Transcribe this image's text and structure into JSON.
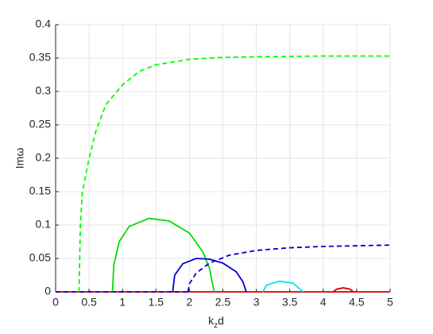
{
  "chart_data": {
    "type": "line",
    "xlabel": [
      "k",
      "z",
      "d"
    ],
    "ylabel": "Imω",
    "xlim": [
      0,
      5
    ],
    "ylim": [
      0,
      0.4
    ],
    "xticks": [
      0,
      0.5,
      1,
      1.5,
      2,
      2.5,
      3,
      3.5,
      4,
      4.5,
      5
    ],
    "yticks": [
      0,
      0.05,
      0.1,
      0.15,
      0.2,
      0.25,
      0.3,
      0.35,
      0.4
    ],
    "grid": true,
    "series": [
      {
        "color": "#d00000",
        "dash": false,
        "x": [
          0,
          5
        ],
        "values": [
          0,
          0
        ]
      },
      {
        "color": "#0000d0",
        "dash": true,
        "x": [
          0,
          1.98
        ],
        "values": [
          0,
          0
        ]
      },
      {
        "color": "#00ff00",
        "dash": true,
        "x": [
          0.35,
          0.37,
          0.4,
          0.5,
          0.6,
          0.75,
          1.0,
          1.25,
          1.5,
          2,
          2.5,
          3,
          4,
          5
        ],
        "values": [
          0,
          0.1,
          0.15,
          0.2,
          0.24,
          0.28,
          0.31,
          0.33,
          0.34,
          0.348,
          0.351,
          0.352,
          0.353,
          0.353
        ]
      },
      {
        "color": "#00dd00",
        "dash": false,
        "x": [
          0.85,
          0.87,
          0.95,
          1.1,
          1.4,
          1.7,
          2.0,
          2.2,
          2.3,
          2.37
        ],
        "values": [
          0,
          0.04,
          0.075,
          0.098,
          0.11,
          0.106,
          0.088,
          0.06,
          0.035,
          0
        ]
      },
      {
        "color": "#0000d0",
        "dash": false,
        "x": [
          1.75,
          1.78,
          1.9,
          2.1,
          2.3,
          2.5,
          2.7,
          2.8,
          2.85
        ],
        "values": [
          0,
          0.025,
          0.042,
          0.05,
          0.049,
          0.043,
          0.03,
          0.015,
          0
        ]
      },
      {
        "color": "#0000d0",
        "dash": true,
        "x": [
          1.98,
          2.0,
          2.1,
          2.3,
          2.6,
          3.0,
          3.5,
          4.0,
          4.5,
          5
        ],
        "values": [
          0,
          0.012,
          0.028,
          0.043,
          0.055,
          0.062,
          0.066,
          0.068,
          0.069,
          0.07
        ]
      },
      {
        "color": "#00e5ee",
        "dash": false,
        "x": [
          3.1,
          3.15,
          3.35,
          3.55,
          3.7
        ],
        "values": [
          0,
          0.01,
          0.016,
          0.013,
          0
        ]
      },
      {
        "color": "#d00000",
        "dash": false,
        "x": [
          4.15,
          4.2,
          4.3,
          4.4,
          4.45
        ],
        "values": [
          0,
          0.004,
          0.006,
          0.004,
          0
        ]
      }
    ]
  }
}
